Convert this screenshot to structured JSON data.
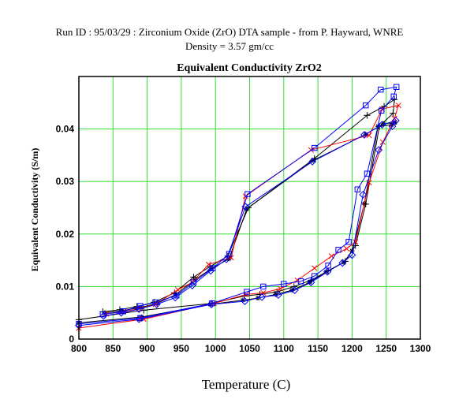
{
  "header": {
    "line1": "Run ID : 95/03/29   :   Zirconium Oxide (ZrO)  DTA sample - from P. Hayward, WNRE",
    "line2": "Density = 3.57 gm/cc"
  },
  "chart_data": {
    "type": "line",
    "title": "Equivalent  Conductivity ZrO2",
    "xlabel": "Temperature (C)",
    "ylabel": "Equivalent Conductivity (S/m)",
    "xlim": [
      800,
      1300
    ],
    "ylim": [
      0,
      0.05
    ],
    "xticks": [
      "800",
      "850",
      "900",
      "950",
      "1000",
      "1050",
      "1100",
      "1150",
      "1200",
      "1250",
      "1300"
    ],
    "yticks": [
      "0",
      "0.01",
      "0.02",
      "0.03",
      "0.04"
    ],
    "grid": true,
    "gridColor": "#33dd33",
    "series": [
      {
        "color": "#000000",
        "marker": "plus",
        "x": [
          835,
          860,
          885,
          910,
          940,
          968,
          992,
          1018,
          1048,
          1145,
          1222,
          1247,
          1262,
          1260,
          1240,
          1220,
          1205,
          1190,
          1165,
          1140,
          1115,
          1090,
          1065,
          1042,
          995,
          895,
          800
        ],
        "y": [
          0.0052,
          0.0056,
          0.0062,
          0.007,
          0.0088,
          0.0118,
          0.0138,
          0.0158,
          0.025,
          0.0344,
          0.0426,
          0.0443,
          0.0456,
          0.043,
          0.0405,
          0.0257,
          0.0178,
          0.0148,
          0.013,
          0.0112,
          0.01,
          0.009,
          0.0085,
          0.0082,
          0.0068,
          0.0055,
          0.0037
        ]
      },
      {
        "color": "#000000",
        "marker": "star",
        "x": [
          838,
          863,
          890,
          915,
          942,
          970,
          994,
          1020,
          1046,
          1143,
          1220,
          1246,
          1263,
          1258,
          1238,
          1218,
          1200,
          1188,
          1162,
          1138,
          1112,
          1088,
          1062,
          1040,
          992,
          892,
          800
        ],
        "y": [
          0.005,
          0.0054,
          0.006,
          0.0068,
          0.0085,
          0.0113,
          0.0134,
          0.0153,
          0.0248,
          0.034,
          0.039,
          0.041,
          0.0412,
          0.0408,
          0.0405,
          0.0258,
          0.0168,
          0.0146,
          0.0128,
          0.0108,
          0.0093,
          0.0085,
          0.0078,
          0.0074,
          0.0066,
          0.0042,
          0.0031
        ]
      },
      {
        "color": "#ff0000",
        "marker": "x",
        "x": [
          840,
          865,
          888,
          912,
          945,
          966,
          990,
          1023,
          1044,
          1140,
          1225,
          1244,
          1268,
          1262,
          1245,
          1225,
          1205,
          1192,
          1170,
          1145,
          1120,
          1095,
          1070,
          1045,
          998,
          895,
          800
        ],
        "y": [
          0.0048,
          0.0052,
          0.0058,
          0.0066,
          0.0094,
          0.0108,
          0.0142,
          0.0155,
          0.0272,
          0.036,
          0.0388,
          0.0438,
          0.0445,
          0.042,
          0.0375,
          0.0298,
          0.0185,
          0.0172,
          0.0158,
          0.0135,
          0.0112,
          0.0096,
          0.0088,
          0.0085,
          0.0068,
          0.0038,
          0.0021
        ]
      },
      {
        "color": "#0000ff",
        "marker": "square",
        "x": [
          835,
          865,
          890,
          912,
          943,
          968,
          996,
          1020,
          1047,
          1145,
          1220,
          1242,
          1265,
          1261,
          1243,
          1222,
          1208,
          1195,
          1180,
          1165,
          1145,
          1125,
          1100,
          1070,
          1046,
          995,
          890,
          800
        ],
        "y": [
          0.0047,
          0.0053,
          0.0063,
          0.007,
          0.0083,
          0.0108,
          0.0135,
          0.0162,
          0.0276,
          0.0364,
          0.0445,
          0.0475,
          0.048,
          0.0462,
          0.0435,
          0.0315,
          0.0285,
          0.0185,
          0.017,
          0.014,
          0.012,
          0.011,
          0.0105,
          0.01,
          0.009,
          0.0068,
          0.004,
          0.0029
        ]
      },
      {
        "color": "#0000ff",
        "marker": "diamond",
        "x": [
          836,
          862,
          888,
          914,
          941,
          966,
          993,
          1016,
          1044,
          1142,
          1218,
          1244,
          1264,
          1259,
          1239,
          1216,
          1200,
          1186,
          1164,
          1140,
          1116,
          1092,
          1068,
          1043,
          994,
          888,
          800
        ],
        "y": [
          0.0044,
          0.005,
          0.0057,
          0.0066,
          0.0079,
          0.0102,
          0.013,
          0.0152,
          0.0252,
          0.0338,
          0.0389,
          0.0408,
          0.0416,
          0.0405,
          0.036,
          0.0275,
          0.016,
          0.0145,
          0.0128,
          0.0108,
          0.0093,
          0.0084,
          0.008,
          0.0072,
          0.0066,
          0.0038,
          0.0026
        ]
      }
    ]
  }
}
